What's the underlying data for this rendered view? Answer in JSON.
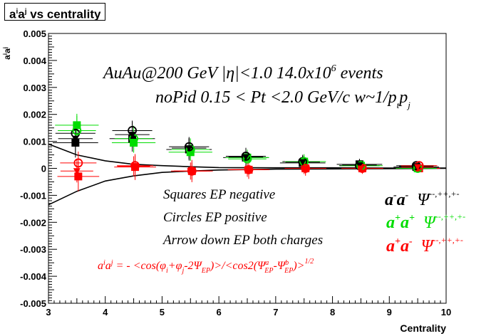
{
  "chart_data": {
    "type": "scatter",
    "title": {
      "base": "a",
      "sup1": "i",
      "mid": "a",
      "sup2": "j",
      "rest": " vs centrality"
    },
    "ylabel": {
      "base": "a",
      "sup1": "i",
      "mid": "a",
      "sup2": "j"
    },
    "xlabel": "Centrality",
    "xlim": [
      3,
      10
    ],
    "ylim": [
      -0.005,
      0.005
    ],
    "x_ticks": [
      "3",
      "4",
      "5",
      "6",
      "7",
      "8",
      "9",
      "10"
    ],
    "y_ticks": [
      "-0.005",
      "-0.004",
      "-0.003",
      "-0.002",
      "-0.001",
      "0",
      "0.001",
      "0.002",
      "0.003",
      "0.004",
      "0.005"
    ],
    "grid": false,
    "colors": {
      "black": "#000000",
      "green": "#00dd00",
      "red": "#ff0000"
    },
    "series": [
      {
        "name": "a-a- (squares, black)",
        "color": "#000000",
        "marker": "square-filled",
        "x": [
          3.5,
          4.5,
          5.5,
          6.5,
          7.5,
          8.5,
          9.5
        ],
        "y": [
          0.00095,
          0.0011,
          0.0007,
          0.0004,
          0.0002,
          0.00015,
          5e-05
        ]
      },
      {
        "name": "a+a+ (squares, green)",
        "color": "#00dd00",
        "marker": "square-filled",
        "x": [
          3.5,
          4.5,
          5.5,
          6.5,
          7.5,
          8.5,
          9.5
        ],
        "y": [
          0.0016,
          0.00095,
          0.0006,
          0.0004,
          0.00025,
          0.0001,
          0.0
        ]
      },
      {
        "name": "a+a- (squares, red)",
        "color": "#ff0000",
        "marker": "square-filled",
        "x": [
          3.5,
          4.5,
          5.5,
          6.5,
          7.5,
          8.5,
          9.5
        ],
        "y": [
          -0.0003,
          5e-05,
          -0.0001,
          -5e-05,
          0.0,
          0.0,
          0.0
        ]
      },
      {
        "name": "a-a- (circles, black)",
        "color": "#000000",
        "marker": "circle-open",
        "x": [
          3.5,
          4.5,
          5.5,
          6.5,
          7.5,
          8.5,
          9.5
        ],
        "y": [
          0.0013,
          0.0014,
          0.0008,
          0.00045,
          0.00025,
          0.0001,
          0.0001
        ]
      },
      {
        "name": "a+a+ (circles, green)",
        "color": "#00dd00",
        "marker": "circle-open",
        "x": [
          3.5,
          4.5,
          5.5,
          6.5,
          7.5,
          8.5,
          9.5
        ],
        "y": [
          0.0014,
          0.0011,
          0.0007,
          0.00035,
          0.00025,
          0.0001,
          0.0
        ]
      },
      {
        "name": "a+a- (circles, red)",
        "color": "#ff0000",
        "marker": "circle-open",
        "x": [
          3.5,
          4.5,
          5.5,
          6.5,
          7.5,
          8.5,
          9.5
        ],
        "y": [
          0.0002,
          0.0001,
          -0.0001,
          -5e-05,
          0.0,
          0.0,
          0.0001
        ]
      },
      {
        "name": "a-a- (arrow down, black)",
        "color": "#000000",
        "marker": "triangle-down",
        "x": [
          3.5,
          4.5,
          5.5,
          6.5,
          7.5,
          8.5,
          9.5
        ],
        "y": [
          0.0011,
          0.00125,
          0.00075,
          0.00042,
          0.00023,
          0.00012,
          8e-05
        ]
      },
      {
        "name": "a+a- (arrow down, red)",
        "color": "#ff0000",
        "marker": "triangle-down",
        "x": [
          3.5,
          4.5,
          5.5,
          6.5,
          7.5,
          8.5,
          9.5
        ],
        "y": [
          -0.0001,
          8e-05,
          -0.0001,
          -5e-05,
          0.0,
          0.0,
          5e-05
        ]
      }
    ],
    "curves": [
      {
        "color": "#000000",
        "x": [
          3.0,
          3.5,
          4.0,
          4.5,
          5.0,
          5.5,
          6.0,
          7.0,
          8.0,
          9.0,
          10.0
        ],
        "y": [
          0.0009,
          0.0005,
          0.00028,
          0.00015,
          0.0001,
          6e-05,
          3e-05,
          2e-05,
          2e-05,
          1e-05,
          1e-05
        ]
      },
      {
        "color": "#000000",
        "x": [
          3.0,
          3.5,
          4.0,
          4.5,
          5.0,
          5.5,
          6.0,
          7.0,
          8.0,
          9.0,
          10.0
        ],
        "y": [
          -0.00135,
          -0.00085,
          -0.00047,
          -0.00028,
          -0.00015,
          -0.0001,
          -6e-05,
          -3e-05,
          -2e-05,
          -1e-05,
          0.0
        ]
      }
    ],
    "annotations": {
      "line1": {
        "a": "AuAu@200 GeV |",
        "eta": "η",
        "b": "|<1.0 14.0x10",
        "sup": "6",
        "c": " events"
      },
      "line2": {
        "a": "noPid 0.15 < Pt <2.0 GeV/c w~1/p",
        "s1": "t",
        "b": "p",
        "s2": "j"
      },
      "squares": "Squares EP negative",
      "circles": "Circles EP positive",
      "arrows": "Arrow down EP both charges",
      "formula": {
        "lhs_a": "a",
        "lhs_si": "i",
        "lhs_b": "a",
        "lhs_sj": "j",
        "eq": " = - <cos(",
        "phi1": "φ",
        "sub_i": "i",
        "plus": "+",
        "phi2": "φ",
        "sub_j": "j",
        "minus2": "-2",
        "psi": "Ψ",
        "sub_ep": "EP",
        "mid": ")>/<cos2(",
        "psi_a": "Ψ",
        "sup_a": "a",
        "sub_ep_a": "EP",
        "dash": "-",
        "psi_b": "Ψ",
        "sup_b": "b",
        "sub_ep_b": "EP",
        "close": ")>",
        "pow": "1/2"
      },
      "legend_black": {
        "a": "a",
        "sa": "-",
        "b": "a",
        "sb": "-",
        "psi": "Ψ",
        "sup": "--,++,+-"
      },
      "legend_green": {
        "a": "a",
        "sa": "+",
        "b": "a",
        "sb": "+",
        "psi": "Ψ",
        "sup": "--,++,+-"
      },
      "legend_red": {
        "a": "a",
        "sa": "+",
        "b": "a",
        "sb": "-",
        "psi": "Ψ",
        "sup": "--,++,+-"
      }
    }
  }
}
